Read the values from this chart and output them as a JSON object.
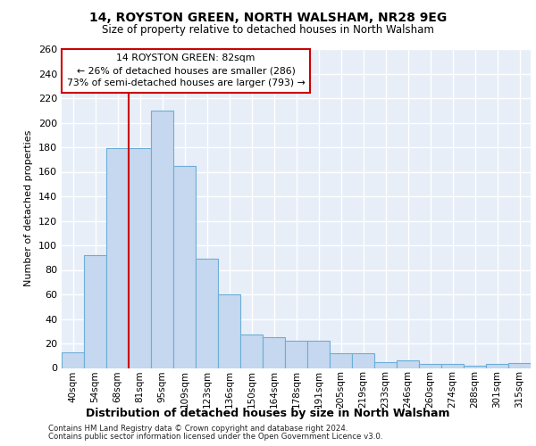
{
  "title1": "14, ROYSTON GREEN, NORTH WALSHAM, NR28 9EG",
  "title2": "Size of property relative to detached houses in North Walsham",
  "xlabel": "Distribution of detached houses by size in North Walsham",
  "ylabel": "Number of detached properties",
  "categories": [
    "40sqm",
    "54sqm",
    "68sqm",
    "81sqm",
    "95sqm",
    "109sqm",
    "123sqm",
    "136sqm",
    "150sqm",
    "164sqm",
    "178sqm",
    "191sqm",
    "205sqm",
    "219sqm",
    "233sqm",
    "246sqm",
    "260sqm",
    "274sqm",
    "288sqm",
    "301sqm",
    "315sqm"
  ],
  "values": [
    13,
    92,
    179,
    179,
    210,
    165,
    89,
    60,
    27,
    25,
    22,
    22,
    12,
    12,
    5,
    6,
    3,
    3,
    2,
    3,
    4
  ],
  "bar_color": "#c5d8f0",
  "bar_edge_color": "#6baed6",
  "vline_color": "#cc0000",
  "vline_x": 2.5,
  "annotation_line1": "14 ROYSTON GREEN: 82sqm",
  "annotation_line2": "← 26% of detached houses are smaller (286)",
  "annotation_line3": "73% of semi-detached houses are larger (793) →",
  "box_facecolor": "#ffffff",
  "box_edgecolor": "#cc0000",
  "ylim": [
    0,
    260
  ],
  "yticks": [
    0,
    20,
    40,
    60,
    80,
    100,
    120,
    140,
    160,
    180,
    200,
    220,
    240,
    260
  ],
  "plot_bg": "#e8eef8",
  "grid_color": "#ffffff",
  "footer1": "Contains HM Land Registry data © Crown copyright and database right 2024.",
  "footer2": "Contains public sector information licensed under the Open Government Licence v3.0."
}
